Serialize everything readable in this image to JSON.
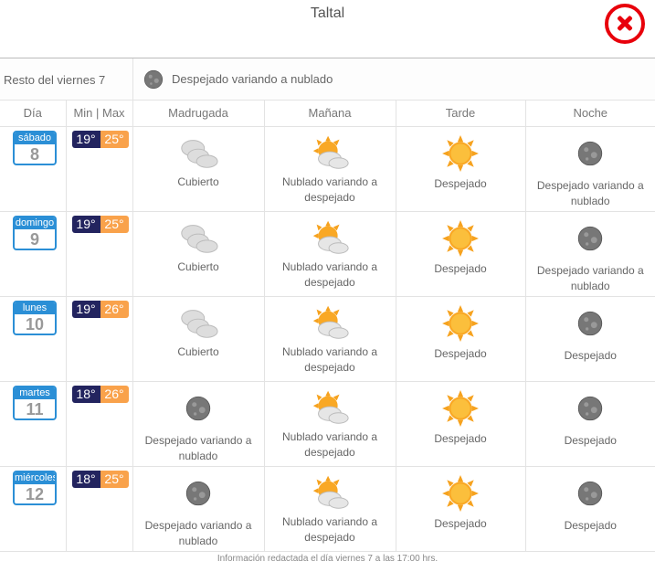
{
  "title": "Taltal",
  "resto": {
    "label": "Resto del viernes 7",
    "icon": "moon-icon",
    "text": "Despejado variando a nublado"
  },
  "headers": {
    "day": "Día",
    "minmax": "Min | Max",
    "madrugada": "Madrugada",
    "manana": "Mañana",
    "tarde": "Tarde",
    "noche": "Noche"
  },
  "days": [
    {
      "weekday": "sábado",
      "date": "8",
      "min": "19°",
      "max": "25°",
      "periods": [
        {
          "icon": "cloudy",
          "text": "Cubierto"
        },
        {
          "icon": "partly-cloudy",
          "text": "Nublado variando a despejado"
        },
        {
          "icon": "sun",
          "text": "Despejado"
        },
        {
          "icon": "moon",
          "text": "Despejado variando a nublado"
        }
      ]
    },
    {
      "weekday": "domingo",
      "date": "9",
      "min": "19°",
      "max": "25°",
      "periods": [
        {
          "icon": "cloudy",
          "text": "Cubierto"
        },
        {
          "icon": "partly-cloudy",
          "text": "Nublado variando a despejado"
        },
        {
          "icon": "sun",
          "text": "Despejado"
        },
        {
          "icon": "moon",
          "text": "Despejado variando a nublado"
        }
      ]
    },
    {
      "weekday": "lunes",
      "date": "10",
      "min": "19°",
      "max": "26°",
      "periods": [
        {
          "icon": "cloudy",
          "text": "Cubierto"
        },
        {
          "icon": "partly-cloudy",
          "text": "Nublado variando a despejado"
        },
        {
          "icon": "sun",
          "text": "Despejado"
        },
        {
          "icon": "moon",
          "text": "Despejado"
        }
      ]
    },
    {
      "weekday": "martes",
      "date": "11",
      "min": "18°",
      "max": "26°",
      "periods": [
        {
          "icon": "moon",
          "text": "Despejado variando a nublado"
        },
        {
          "icon": "partly-cloudy",
          "text": "Nublado variando a despejado"
        },
        {
          "icon": "sun",
          "text": "Despejado"
        },
        {
          "icon": "moon",
          "text": "Despejado"
        }
      ]
    },
    {
      "weekday": "miércoles",
      "date": "12",
      "min": "18°",
      "max": "25°",
      "periods": [
        {
          "icon": "moon",
          "text": "Despejado variando a nublado"
        },
        {
          "icon": "partly-cloudy",
          "text": "Nublado variando a despejado"
        },
        {
          "icon": "sun",
          "text": "Despejado"
        },
        {
          "icon": "moon",
          "text": "Despejado"
        }
      ]
    }
  ],
  "footer": "Información redactada el día viernes 7 a las 17:00 hrs.",
  "colors": {
    "calendar": "#2b8fd6",
    "min": "#23245f",
    "max": "#f9a24b",
    "close": "#e8000b"
  }
}
